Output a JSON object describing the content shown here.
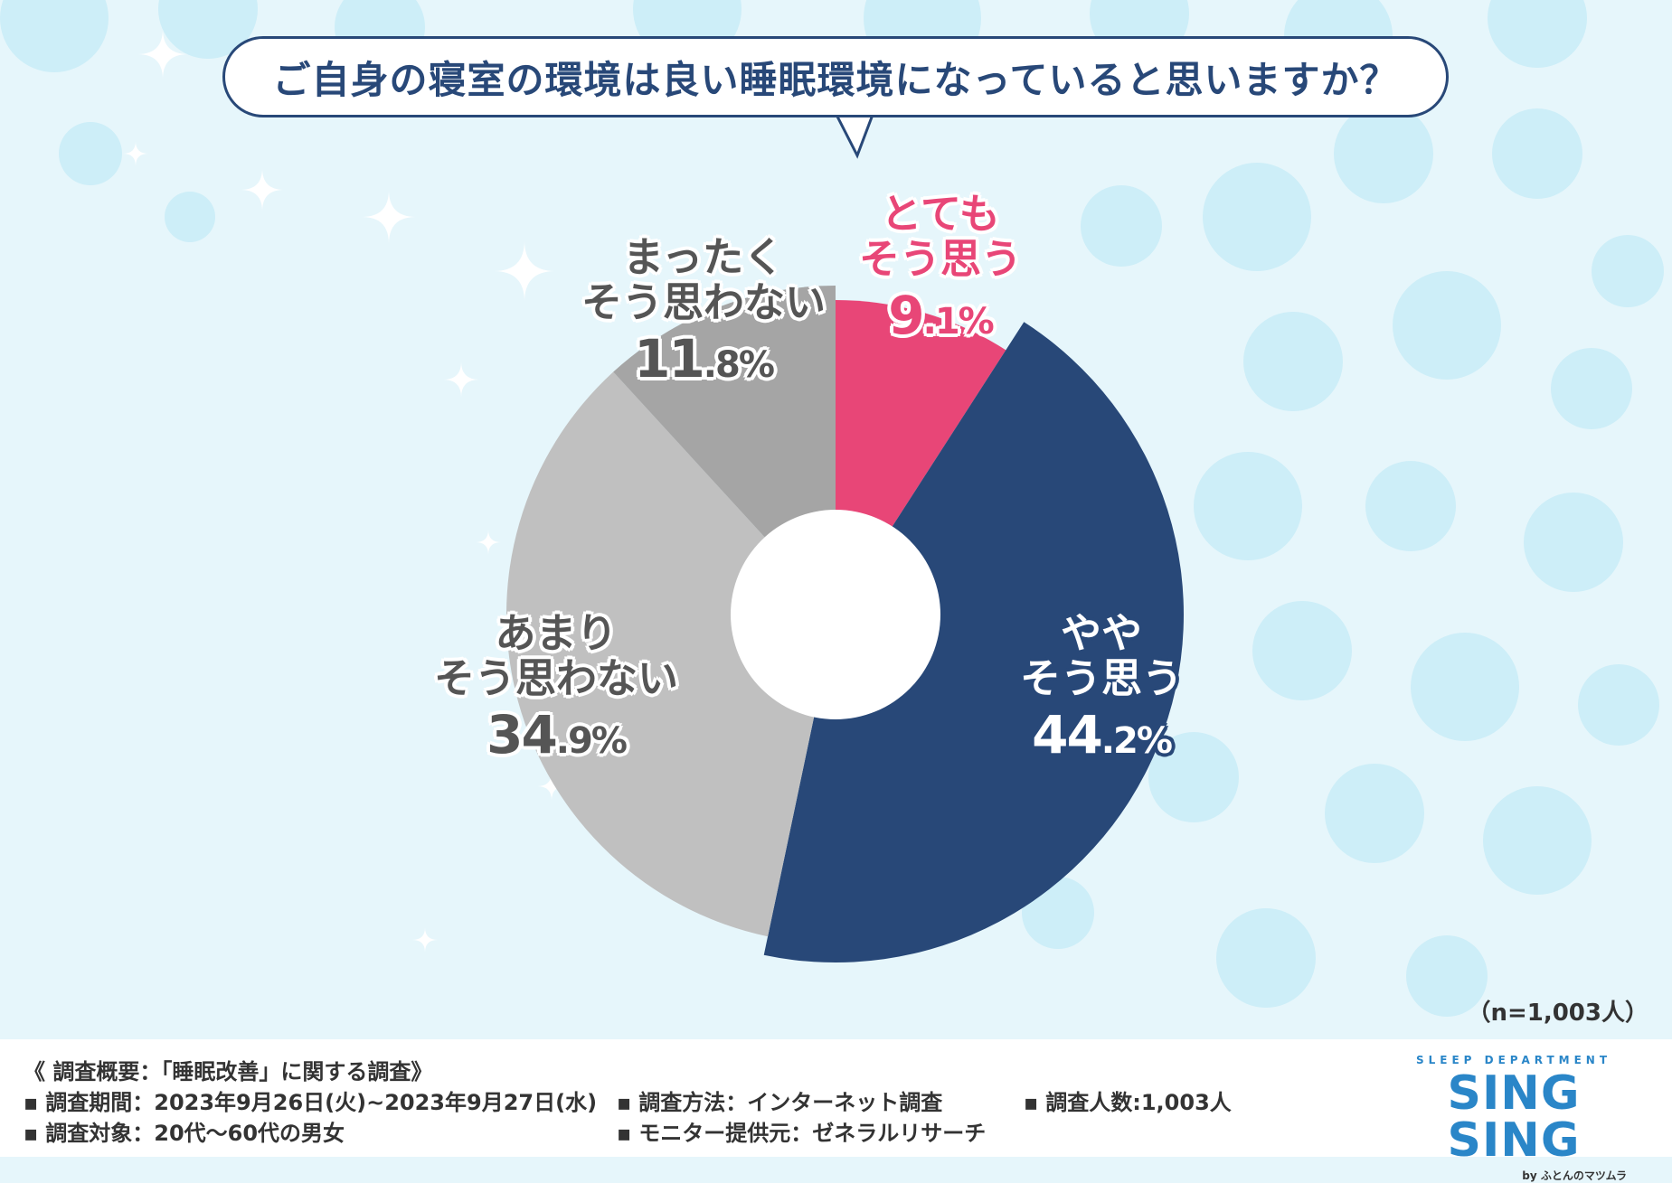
{
  "title": "ご自身の寝室の環境は良い睡眠環境になっていると思いますか？",
  "colors": {
    "pink": "#e84677",
    "navy": "#284878",
    "light_gray": "#c0c0c0",
    "dark_gray": "#a5a5a5"
  },
  "chart_data": {
    "type": "pie",
    "donut": true,
    "unit": "%",
    "slices": [
      {
        "category_line1": "とても",
        "category_line2": "そう思う",
        "value": 9.1,
        "pct_main": "9",
        "pct_rest": ".1%",
        "color": "#e84677"
      },
      {
        "category_line1": "やや",
        "category_line2": "そう思う",
        "value": 44.2,
        "pct_main": "44",
        "pct_rest": ".2%",
        "color": "#284878"
      },
      {
        "category_line1": "あまり",
        "category_line2": "そう思わない",
        "value": 34.9,
        "pct_main": "34",
        "pct_rest": ".9%",
        "color": "#c0c0c0"
      },
      {
        "category_line1": "まったく",
        "category_line2": "そう思わない",
        "value": 11.8,
        "pct_main": "11",
        "pct_rest": ".8%",
        "color": "#a5a5a5"
      }
    ]
  },
  "sample_note": "（n=1,003人）",
  "footer": {
    "heading": "《 調査概要：「睡眠改善」に関する調査》",
    "items": [
      "調査期間：2023年9月26日(火)~2023年9月27日(水)",
      "調査方法：インターネット調査",
      "調査人数:1,003人",
      "調査対象：20代～60代の男女",
      "モニター提供元：ゼネラルリサーチ"
    ]
  },
  "logo": {
    "top": "SLEEP DEPARTMENT",
    "main": "SING SING",
    "by": "by ふとんのマツムラ"
  }
}
